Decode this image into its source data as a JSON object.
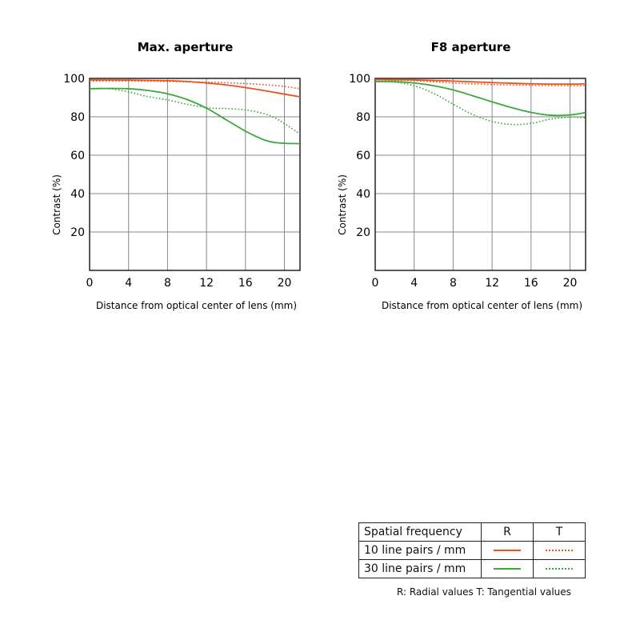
{
  "colors": {
    "lp10": "#e8531e",
    "lp30": "#3aa83a",
    "grid": "#888888",
    "axis": "#222222"
  },
  "chart_data": [
    {
      "type": "line",
      "title": "Max. aperture",
      "xlabel": "Distance from optical center of lens (mm)",
      "ylabel": "Contrast (%)",
      "xlim": [
        0,
        21.6
      ],
      "ylim": [
        0,
        100
      ],
      "xticks": [
        0,
        4,
        8,
        12,
        16,
        20
      ],
      "yticks": [
        20,
        40,
        60,
        80,
        100
      ],
      "grid": true,
      "series": [
        {
          "key": "lp10_R",
          "color_key": "lp10",
          "style": "solid",
          "x": [
            0,
            4,
            8,
            10,
            12,
            14,
            16,
            18,
            20,
            21.6
          ],
          "y": [
            99.2,
            99.1,
            98.8,
            98.4,
            97.6,
            96.6,
            95.2,
            93.6,
            91.8,
            90.4
          ]
        },
        {
          "key": "lp10_T",
          "color_key": "lp10",
          "style": "dotted",
          "x": [
            0,
            4,
            8,
            12,
            14,
            16,
            18,
            20,
            21.6
          ],
          "y": [
            98.6,
            98.6,
            98.4,
            98,
            97.7,
            97.3,
            96.7,
            95.8,
            94.6
          ]
        },
        {
          "key": "lp30_R",
          "color_key": "lp30",
          "style": "solid",
          "x": [
            0,
            2,
            4,
            6,
            8,
            10,
            12,
            14,
            16,
            17,
            18,
            19,
            20,
            21.6
          ],
          "y": [
            94.6,
            94.8,
            94.6,
            93.7,
            92,
            89,
            84.5,
            78.5,
            72.5,
            70,
            67.8,
            66.6,
            66.2,
            66
          ]
        },
        {
          "key": "lp30_T",
          "color_key": "lp30",
          "style": "dotted",
          "x": [
            0,
            2,
            4,
            6,
            8,
            10,
            12,
            13,
            14,
            16,
            18,
            19,
            20,
            21.6
          ],
          "y": [
            94.8,
            94.6,
            93,
            90.5,
            88.8,
            86.5,
            84.8,
            84.4,
            84.3,
            83.6,
            81.5,
            79.5,
            76.5,
            71
          ]
        }
      ]
    },
    {
      "type": "line",
      "title": "F8 aperture",
      "xlabel": "Distance from optical center of lens (mm)",
      "ylabel": "Contrast (%)",
      "xlim": [
        0,
        21.6
      ],
      "ylim": [
        0,
        100
      ],
      "xticks": [
        0,
        4,
        8,
        12,
        16,
        20
      ],
      "yticks": [
        20,
        40,
        60,
        80,
        100
      ],
      "grid": true,
      "series": [
        {
          "key": "lp10_R",
          "color_key": "lp10",
          "style": "solid",
          "x": [
            0,
            4,
            8,
            12,
            16,
            20,
            21.6
          ],
          "y": [
            99.4,
            99.2,
            98.6,
            97.8,
            97.2,
            97,
            97.2
          ]
        },
        {
          "key": "lp10_T",
          "color_key": "lp10",
          "style": "dotted",
          "x": [
            0,
            4,
            8,
            12,
            16,
            20,
            21.6
          ],
          "y": [
            99.2,
            98.8,
            97.6,
            96.8,
            96.4,
            96.2,
            96.2
          ]
        },
        {
          "key": "lp30_R",
          "color_key": "lp30",
          "style": "solid",
          "x": [
            0,
            2,
            4,
            6,
            8,
            10,
            12,
            14,
            16,
            18,
            20,
            21.6
          ],
          "y": [
            98.4,
            98.3,
            97.6,
            96.2,
            94,
            91,
            87.8,
            84.8,
            82.3,
            80.8,
            81,
            82.2
          ]
        },
        {
          "key": "lp30_T",
          "color_key": "lp30",
          "style": "dotted",
          "x": [
            0,
            2,
            4,
            6,
            8,
            10,
            12,
            14,
            16,
            18,
            20,
            21.6
          ],
          "y": [
            98.4,
            98,
            96.2,
            92.2,
            86.6,
            81.2,
            77.6,
            76,
            76.6,
            78.8,
            79.8,
            79.5
          ]
        }
      ]
    }
  ],
  "legend": {
    "header": {
      "label": "Spatial frequency",
      "r": "R",
      "t": "T"
    },
    "rows": [
      {
        "label": "10 line pairs / mm",
        "color_key": "lp10"
      },
      {
        "label": "30 line pairs / mm",
        "color_key": "lp30"
      }
    ],
    "note": "R: Radial values  T: Tangential values"
  }
}
